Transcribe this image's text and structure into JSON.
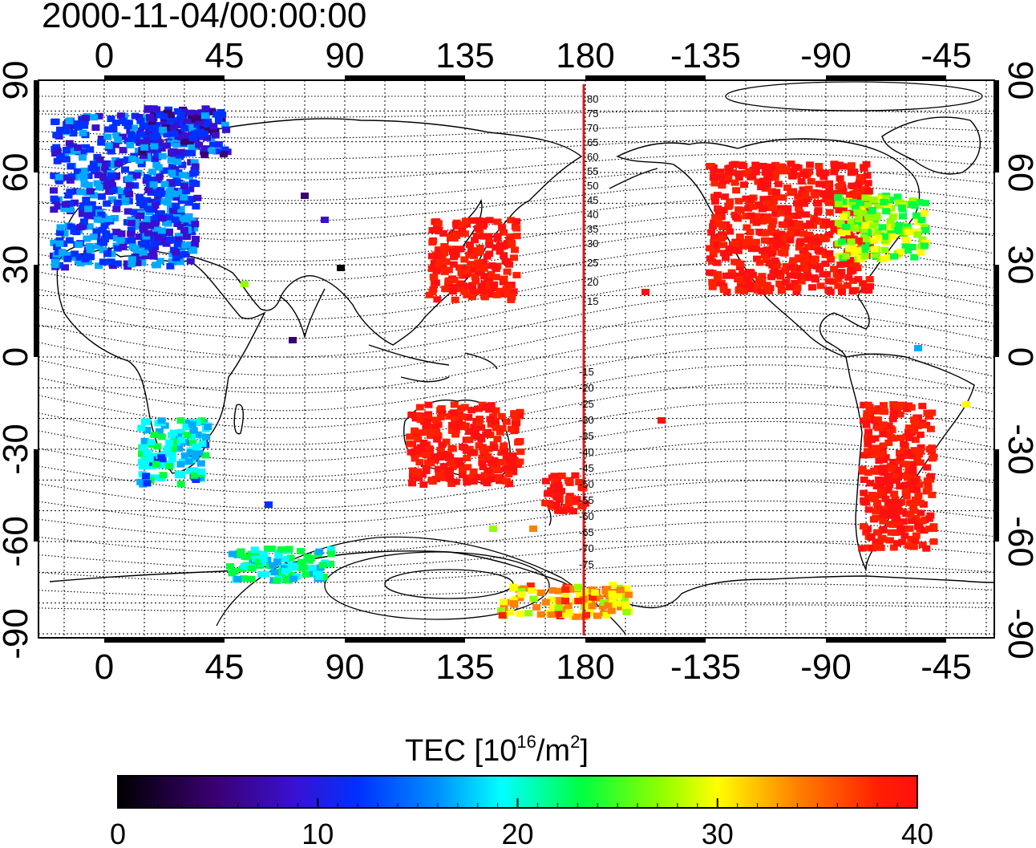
{
  "title": "2000-11-04/00:00:00",
  "map": {
    "lon_ticks_top": [
      "0",
      "45",
      "90",
      "135",
      "180",
      "-135",
      "-90",
      "-45"
    ],
    "lon_ticks_bottom": [
      "0",
      "45",
      "90",
      "135",
      "180",
      "-135",
      "-90",
      "-45"
    ],
    "lat_ticks_left": [
      "90",
      "60",
      "30",
      "0",
      "-30",
      "-60",
      "-90"
    ],
    "lat_ticks_right": [
      "90",
      "60",
      "30",
      "0",
      "-30",
      "-60",
      "-90"
    ],
    "magnetic_lat_labels_north": [
      "80",
      "75",
      "70",
      "65",
      "60",
      "55",
      "50",
      "45",
      "40",
      "35",
      "30",
      "25",
      "20",
      "15"
    ],
    "magnetic_lat_labels_south": [
      "15",
      "20",
      "25",
      "30",
      "35",
      "40",
      "45",
      "50",
      "55",
      "60",
      "65",
      "70",
      "75"
    ],
    "date_line_color": "#d42020"
  },
  "colorbar": {
    "label_prefix": "TEC  [10",
    "label_exp": "16",
    "label_mid": "/m",
    "label_exp2": "2",
    "label_suffix": "]",
    "ticks": [
      "0",
      "10",
      "20",
      "30",
      "40"
    ],
    "range": [
      0,
      40
    ]
  },
  "tec_regions": [
    {
      "name": "europe",
      "value": 10
    },
    {
      "name": "east-asia-japan",
      "value": 40
    },
    {
      "name": "north-america",
      "value": 40
    },
    {
      "name": "australia",
      "value": 40
    },
    {
      "name": "new-zealand",
      "value": 40
    },
    {
      "name": "south-america",
      "value": 40
    },
    {
      "name": "southern-africa",
      "value": 20
    },
    {
      "name": "antarctica",
      "value": 28
    }
  ]
}
